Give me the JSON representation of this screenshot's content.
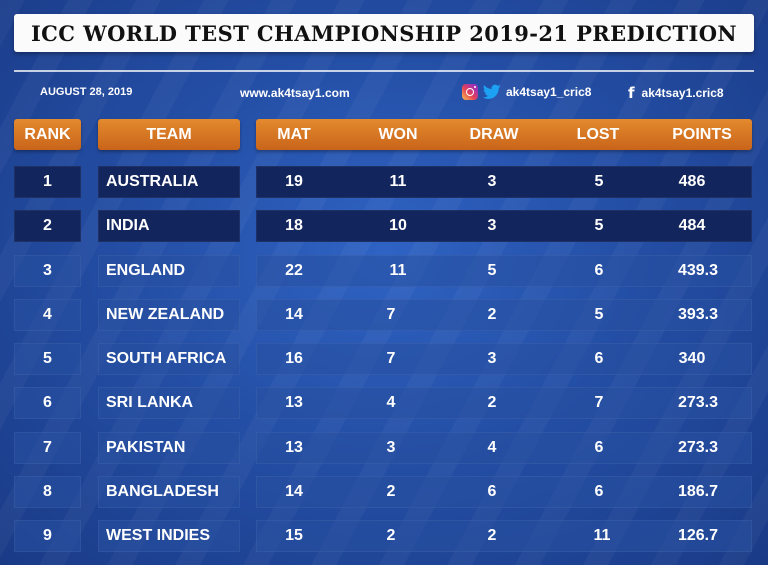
{
  "title": "ICC WORLD TEST CHAMPIONSHIP 2019-21 PREDICTION",
  "date": "AUGUST 28, 2019",
  "website": "www.ak4tsay1.com",
  "social": {
    "handle_ig_tw": "ak4tsay1_cric8",
    "handle_fb": "ak4tsay1.cric8",
    "icons": [
      "instagram-icon",
      "twitter-icon",
      "facebook-icon"
    ]
  },
  "colors": {
    "header_orange": "#d9761f",
    "highlight_row": "#13255d",
    "background": "#2a57b5"
  },
  "table": {
    "headers": {
      "rank": "RANK",
      "team": "TEAM",
      "mat": "MAT",
      "won": "WON",
      "draw": "DRAW",
      "lost": "LOST",
      "points": "POINTS"
    },
    "rows": [
      {
        "rank": "1",
        "team": "AUSTRALIA",
        "mat": "19",
        "won": "11",
        "draw": "3",
        "lost": "5",
        "points": "486"
      },
      {
        "rank": "2",
        "team": "INDIA",
        "mat": "18",
        "won": "10",
        "draw": "3",
        "lost": "5",
        "points": "484"
      },
      {
        "rank": "3",
        "team": "ENGLAND",
        "mat": "22",
        "won": "11",
        "draw": "5",
        "lost": "6",
        "points": "439.3"
      },
      {
        "rank": "4",
        "team": "NEW ZEALAND",
        "mat": "14",
        "won": "7",
        "draw": "2",
        "lost": "5",
        "points": "393.3"
      },
      {
        "rank": "5",
        "team": "SOUTH AFRICA",
        "mat": "16",
        "won": "7",
        "draw": "3",
        "lost": "6",
        "points": "340"
      },
      {
        "rank": "6",
        "team": "SRI LANKA",
        "mat": "13",
        "won": "4",
        "draw": "2",
        "lost": "7",
        "points": "273.3"
      },
      {
        "rank": "7",
        "team": "PAKISTAN",
        "mat": "13",
        "won": "3",
        "draw": "4",
        "lost": "6",
        "points": "273.3"
      },
      {
        "rank": "8",
        "team": "BANGLADESH",
        "mat": "14",
        "won": "2",
        "draw": "6",
        "lost": "6",
        "points": "186.7"
      },
      {
        "rank": "9",
        "team": "WEST INDIES",
        "mat": "15",
        "won": "2",
        "draw": "2",
        "lost": "11",
        "points": "126.7"
      }
    ]
  }
}
